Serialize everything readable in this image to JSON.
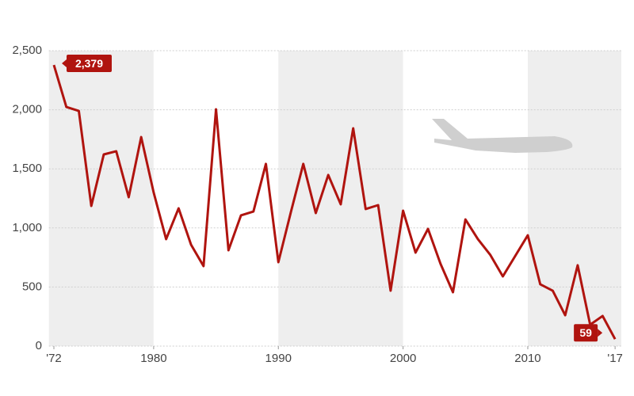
{
  "chart_data": {
    "type": "line",
    "x": [
      1972,
      1973,
      1974,
      1975,
      1976,
      1977,
      1978,
      1979,
      1980,
      1981,
      1982,
      1983,
      1984,
      1985,
      1986,
      1987,
      1988,
      1989,
      1990,
      1991,
      1992,
      1993,
      1994,
      1995,
      1996,
      1997,
      1998,
      1999,
      2000,
      2001,
      2002,
      2003,
      2004,
      2005,
      2006,
      2007,
      2008,
      2009,
      2010,
      2011,
      2012,
      2013,
      2014,
      2015,
      2016,
      2017
    ],
    "values": [
      2379,
      2024,
      1990,
      1186,
      1622,
      1649,
      1260,
      1769,
      1300,
      905,
      1166,
      858,
      677,
      2004,
      811,
      1106,
      1139,
      1542,
      710,
      1133,
      1542,
      1126,
      1448,
      1200,
      1843,
      1160,
      1193,
      469,
      1146,
      791,
      992,
      697,
      456,
      1072,
      905,
      771,
      590,
      764,
      938,
      523,
      469,
      261,
      684,
      181,
      255,
      59
    ],
    "value_labels": [
      "2,379",
      null,
      null,
      null,
      null,
      null,
      null,
      null,
      null,
      null,
      null,
      null,
      null,
      null,
      null,
      null,
      null,
      null,
      null,
      null,
      null,
      null,
      null,
      null,
      null,
      null,
      null,
      null,
      null,
      null,
      null,
      null,
      null,
      null,
      null,
      null,
      null,
      null,
      null,
      null,
      null,
      null,
      null,
      null,
      null,
      "59"
    ],
    "color": "#b0140f",
    "xlim": [
      1971.6,
      2017.5
    ],
    "xticks": [
      {
        "value": 1972,
        "label": "'72"
      },
      1980,
      1990,
      2000,
      2010,
      {
        "value": 2017,
        "label": "'17"
      }
    ],
    "ylim": [
      0,
      2500
    ],
    "yticks": [
      0,
      500,
      {
        "value": 1000,
        "label": "1,000"
      },
      {
        "value": 1500,
        "label": "1,500"
      },
      {
        "value": 2000,
        "label": "2,000"
      },
      {
        "value": 2500,
        "label": "2,500"
      }
    ],
    "grid": true
  }
}
